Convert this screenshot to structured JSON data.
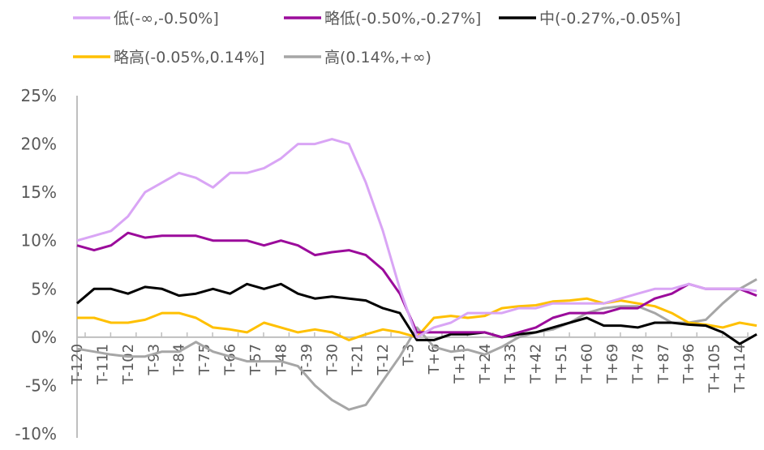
{
  "chart_data": {
    "type": "line",
    "title": "",
    "xlabel": "",
    "ylabel": "",
    "ylim": [
      -10,
      25
    ],
    "yticks": [
      -10,
      -5,
      0,
      5,
      10,
      15,
      20,
      25
    ],
    "ytick_labels": [
      "-10%",
      "-5%",
      "0%",
      "5%",
      "10%",
      "15%",
      "20%",
      "25%"
    ],
    "xlim": [
      -120,
      120
    ],
    "xtick_values": [
      -120,
      -111,
      -102,
      -93,
      -84,
      -75,
      -66,
      -57,
      -48,
      -39,
      -30,
      -21,
      -12,
      -3,
      6,
      15,
      24,
      33,
      42,
      51,
      60,
      69,
      78,
      87,
      96,
      105,
      114
    ],
    "xtick_labels": [
      "T-120",
      "T-111",
      "T-102",
      "T-93",
      "T-84",
      "T-75",
      "T-66",
      "T-57",
      "T-48",
      "T-39",
      "T-30",
      "T-21",
      "T-12",
      "T-3",
      "T+6",
      "T+15",
      "T+24",
      "T+33",
      "T+42",
      "T+51",
      "T+60",
      "T+69",
      "T+78",
      "T+87",
      "T+96",
      "T+105",
      "T+114"
    ],
    "grid": false,
    "legend_position": "top",
    "x": [
      -120,
      -114,
      -108,
      -102,
      -96,
      -90,
      -84,
      -78,
      -72,
      -66,
      -60,
      -54,
      -48,
      -42,
      -36,
      -30,
      -24,
      -18,
      -12,
      -6,
      0,
      6,
      12,
      18,
      24,
      30,
      36,
      42,
      48,
      54,
      60,
      66,
      72,
      78,
      84,
      90,
      96,
      102,
      108,
      114,
      120
    ],
    "series": [
      {
        "name": "低(-∞,-0.50%]",
        "color": "#D9A5F5",
        "values": [
          10,
          10.5,
          11,
          12.5,
          15,
          16,
          17,
          16.5,
          15.5,
          17,
          17,
          17.5,
          18.5,
          20,
          20,
          20.5,
          20,
          16,
          11,
          5,
          0,
          1,
          1.5,
          2.5,
          2.5,
          2.5,
          3,
          3,
          3.5,
          3.5,
          3.5,
          3.5,
          4,
          4.5,
          5,
          5,
          5.5,
          5,
          5,
          5,
          4.8
        ]
      },
      {
        "name": "略低(-0.50%,-0.27%]",
        "color": "#9B0B9B",
        "values": [
          9.5,
          9,
          9.5,
          10.8,
          10.3,
          10.5,
          10.5,
          10.5,
          10,
          10,
          10,
          9.5,
          10,
          9.5,
          8.5,
          8.8,
          9,
          8.5,
          7,
          4.5,
          0.5,
          0.5,
          0.5,
          0.5,
          0.5,
          0,
          0.5,
          1,
          2,
          2.5,
          2.5,
          2.5,
          3,
          3,
          4,
          4.5,
          5.5,
          5,
          5,
          5,
          4.3
        ]
      },
      {
        "name": "中(-0.27%,-0.05%]",
        "color": "#000000",
        "values": [
          3.5,
          5,
          5,
          4.5,
          5.2,
          5,
          4.3,
          4.5,
          5,
          4.5,
          5.5,
          5,
          5.5,
          4.5,
          4,
          4.2,
          4,
          3.8,
          3,
          2.5,
          -0.3,
          -0.3,
          0.3,
          0.3,
          0.5,
          0,
          0.3,
          0.5,
          1,
          1.5,
          2,
          1.2,
          1.2,
          1,
          1.5,
          1.5,
          1.3,
          1.2,
          0.5,
          -0.7,
          0.3
        ]
      },
      {
        "name": "略高(-0.05%,0.14%]",
        "color": "#FFC000",
        "values": [
          2,
          2,
          1.5,
          1.5,
          1.8,
          2.5,
          2.5,
          2,
          1,
          0.8,
          0.5,
          1.5,
          1,
          0.5,
          0.8,
          0.5,
          -0.3,
          0.3,
          0.8,
          0.5,
          0,
          2,
          2.2,
          2,
          2.2,
          3,
          3.2,
          3.3,
          3.7,
          3.8,
          4,
          3.5,
          3.8,
          3.5,
          3.2,
          2.5,
          1.5,
          1.3,
          1,
          1.5,
          1.2
        ]
      },
      {
        "name": "高(0.14%,+∞)",
        "color": "#A6A6A6",
        "values": [
          -1.2,
          -1.5,
          -1.8,
          -2,
          -2,
          -1.5,
          -1.5,
          -0.5,
          -1.5,
          -2,
          -2.5,
          -2.5,
          -2.5,
          -3,
          -5,
          -6.5,
          -7.5,
          -7,
          -4.5,
          -2,
          1,
          -1,
          -1.5,
          -1.3,
          -1.8,
          -1,
          0,
          0.5,
          0.8,
          1.5,
          2.5,
          3,
          3.2,
          3.2,
          2.5,
          1.5,
          1.5,
          1.8,
          3.5,
          5,
          6
        ]
      }
    ]
  }
}
